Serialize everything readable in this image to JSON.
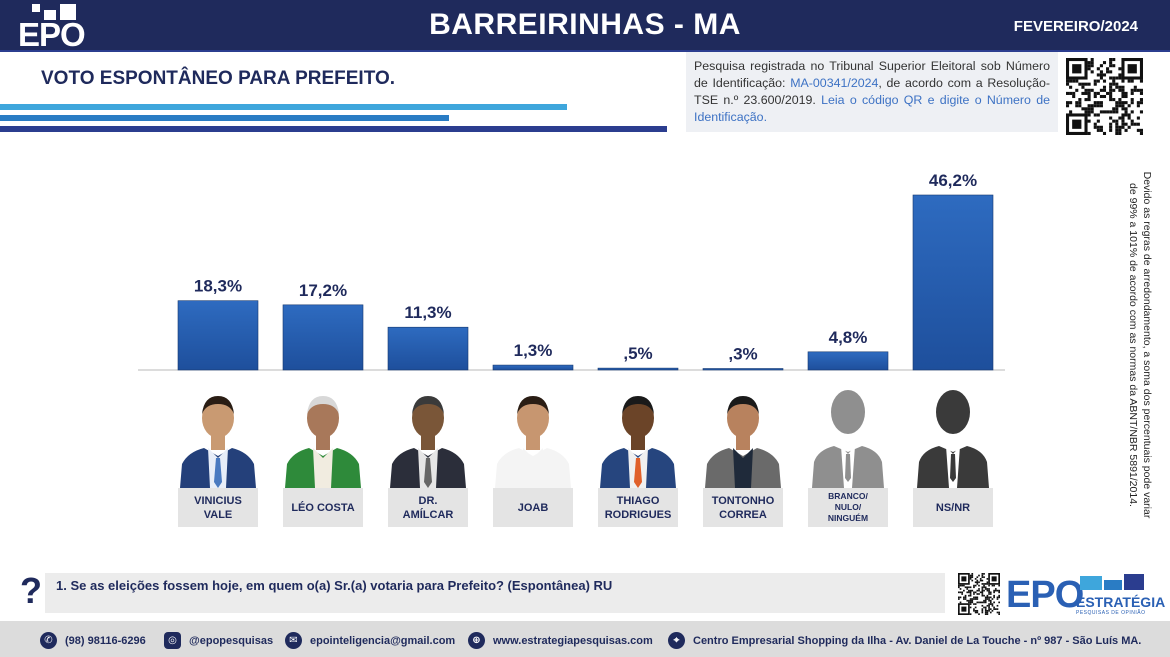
{
  "header": {
    "logo_text": "EPO",
    "title": "BARREIRINHAS - MA",
    "date": "FEVEREIRO/2024"
  },
  "subtitle": "VOTO ESPONTÂNEO PARA PREFEITO.",
  "registration": {
    "text1": "Pesquisa registrada no Tribunal Superior Eleitoral sob Número de Identificação: ",
    "id": "MA-00341/2024",
    "text2": ", de acordo com a Resolução-TSE n.º 23.600/2019. ",
    "text3": "Leia o código QR e digite o Número de Identificação."
  },
  "side_note": "Devido as regras de arredondamento, a soma dos percentuais pode variar de 99% a 101% de acordo com as normas da ABNT/NBR 5891/2014.",
  "chart_data": {
    "type": "bar",
    "categories": [
      "VINICIUS VALE",
      "LÉO COSTA",
      "DR. AMÍLCAR",
      "JOAB",
      "THIAGO RODRIGUES",
      "TONTONHO CORREA",
      "BRANCO/ NULO/ NINGUÉM",
      "NS/NR"
    ],
    "values": [
      18.3,
      17.2,
      11.3,
      1.3,
      0.5,
      0.3,
      4.8,
      46.2
    ],
    "value_labels": [
      "18,3%",
      "17,2%",
      "11,3%",
      "1,3%",
      ",5%",
      ",3%",
      "4,8%",
      "46,2%"
    ],
    "ylim": [
      0,
      46.2
    ],
    "grid": false,
    "colors": {
      "bar": "#1e4f9c",
      "bar_light": "#2e6bc0",
      "label": "#1f2a5c"
    }
  },
  "candidates": [
    {
      "line1": "VINICIUS",
      "line2": "VALE",
      "photo": "person",
      "suit": "#24407a",
      "shirt": "#e8eef8",
      "tie": "#4a7ac0",
      "skin": "#c99a72",
      "hair": "#2a1d14"
    },
    {
      "line1": "LÉO COSTA",
      "line2": "",
      "photo": "person",
      "suit": "#2e8a3a",
      "shirt": "#f1ece0",
      "tie": "",
      "skin": "#a8785a",
      "hair": "#d8d8d8"
    },
    {
      "line1": "DR.",
      "line2": "AMÍLCAR",
      "photo": "person",
      "suit": "#2b2e3a",
      "shirt": "#e6e6e6",
      "tie": "#666666",
      "skin": "#7a5638",
      "hair": "#3a3a3a"
    },
    {
      "line1": "JOAB",
      "line2": "",
      "photo": "person",
      "suit": "#f4f4f4",
      "shirt": "#f4f4f4",
      "tie": "",
      "skin": "#c79670",
      "hair": "#2a1d14"
    },
    {
      "line1": "THIAGO",
      "line2": "RODRIGUES",
      "photo": "person",
      "suit": "#26457e",
      "shirt": "#f0f0f0",
      "tie": "#e0602a",
      "skin": "#6b4428",
      "hair": "#1a1a1a"
    },
    {
      "line1": "TONTONHO",
      "line2": "CORREA",
      "photo": "person",
      "suit": "#6a6a6a",
      "shirt": "#1f2a3a",
      "tie": "",
      "skin": "#b8825e",
      "hair": "#1a1a1a"
    },
    {
      "line1": "BRANCO/",
      "line2": "NULO/",
      "line3": "NINGUÉM",
      "photo": "silhouette",
      "color": "#8f8f8f"
    },
    {
      "line1": "NS/NR",
      "line2": "",
      "photo": "silhouette",
      "color": "#3a3a3a"
    }
  ],
  "question": {
    "mark": "?",
    "text": "1.  Se as eleições fossem hoje, em quem o(a) Sr.(a) votaria para Prefeito? (Espontânea) RU"
  },
  "brand": {
    "epo": "EPO",
    "name": "ESTRATÉGIA",
    "tagline": "PESQUISAS DE OPINIÃO"
  },
  "footer": {
    "phone": "(98) 98116-6296",
    "instagram": "@epopesquisas",
    "email": "epointeligencia@gmail.com",
    "site": "www.estrategiapesquisas.com",
    "address": "Centro Empresarial Shopping da Ilha - Av. Daniel de La Touche - nº 987 - São Luís MA.",
    "icons": [
      "whatsapp-icon",
      "instagram-icon",
      "email-icon",
      "globe-icon",
      "location-icon"
    ]
  }
}
